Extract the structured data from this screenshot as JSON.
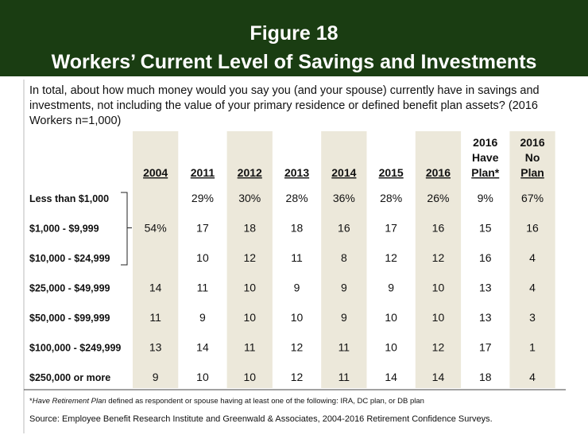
{
  "header": {
    "figure": "Figure 18",
    "title": "Workers’ Current Level of Savings and Investments"
  },
  "question": [
    "In total, about how much money would you say you (and your spouse) currently have in savings and",
    "investments, not including the value of your primary residence or defined benefit plan assets? (2016",
    "Workers n=1,000)"
  ],
  "table": {
    "columns": [
      [
        "2004"
      ],
      [
        "2011"
      ],
      [
        "2012"
      ],
      [
        "2013"
      ],
      [
        "2014"
      ],
      [
        "2015"
      ],
      [
        "2016"
      ],
      [
        "2016",
        "Have",
        "Plan*"
      ],
      [
        "2016",
        "No",
        "Plan"
      ]
    ],
    "rows": [
      {
        "label": "Less than $1,000",
        "cells": [
          null,
          "29%",
          "30%",
          "28%",
          "36%",
          "28%",
          "26%",
          "9%",
          "67%"
        ]
      },
      {
        "label": "$1,000 - $9,999",
        "cells": [
          "54%",
          "17",
          "18",
          "18",
          "16",
          "17",
          "16",
          "15",
          "16"
        ]
      },
      {
        "label": "$10,000 - $24,999",
        "cells": [
          null,
          "10",
          "12",
          "11",
          "8",
          "12",
          "12",
          "16",
          "4"
        ]
      },
      {
        "label": "$25,000 - $49,999",
        "cells": [
          "14",
          "11",
          "10",
          "9",
          "9",
          "9",
          "10",
          "13",
          "4"
        ]
      },
      {
        "label": "$50,000 - $99,999",
        "cells": [
          "11",
          "9",
          "10",
          "10",
          "9",
          "10",
          "10",
          "13",
          "3"
        ]
      },
      {
        "label": "$100,000 - $249,999",
        "cells": [
          "13",
          "14",
          "11",
          "12",
          "11",
          "10",
          "12",
          "17",
          "1"
        ]
      },
      {
        "label": "$250,000 or more",
        "cells": [
          "9",
          "10",
          "10",
          "12",
          "11",
          "14",
          "14",
          "18",
          "4"
        ]
      }
    ]
  },
  "footnote": {
    "marker": "*",
    "emphasis": "Have Retirement Plan",
    "text": "defined as respondent or spouse having at least one of the following: IRA, DC plan, or DB plan"
  },
  "source": "Source:  Employee Benefit Research Institute and Greenwald & Associates, 2004-2016 Retirement Confidence Surveys."
}
